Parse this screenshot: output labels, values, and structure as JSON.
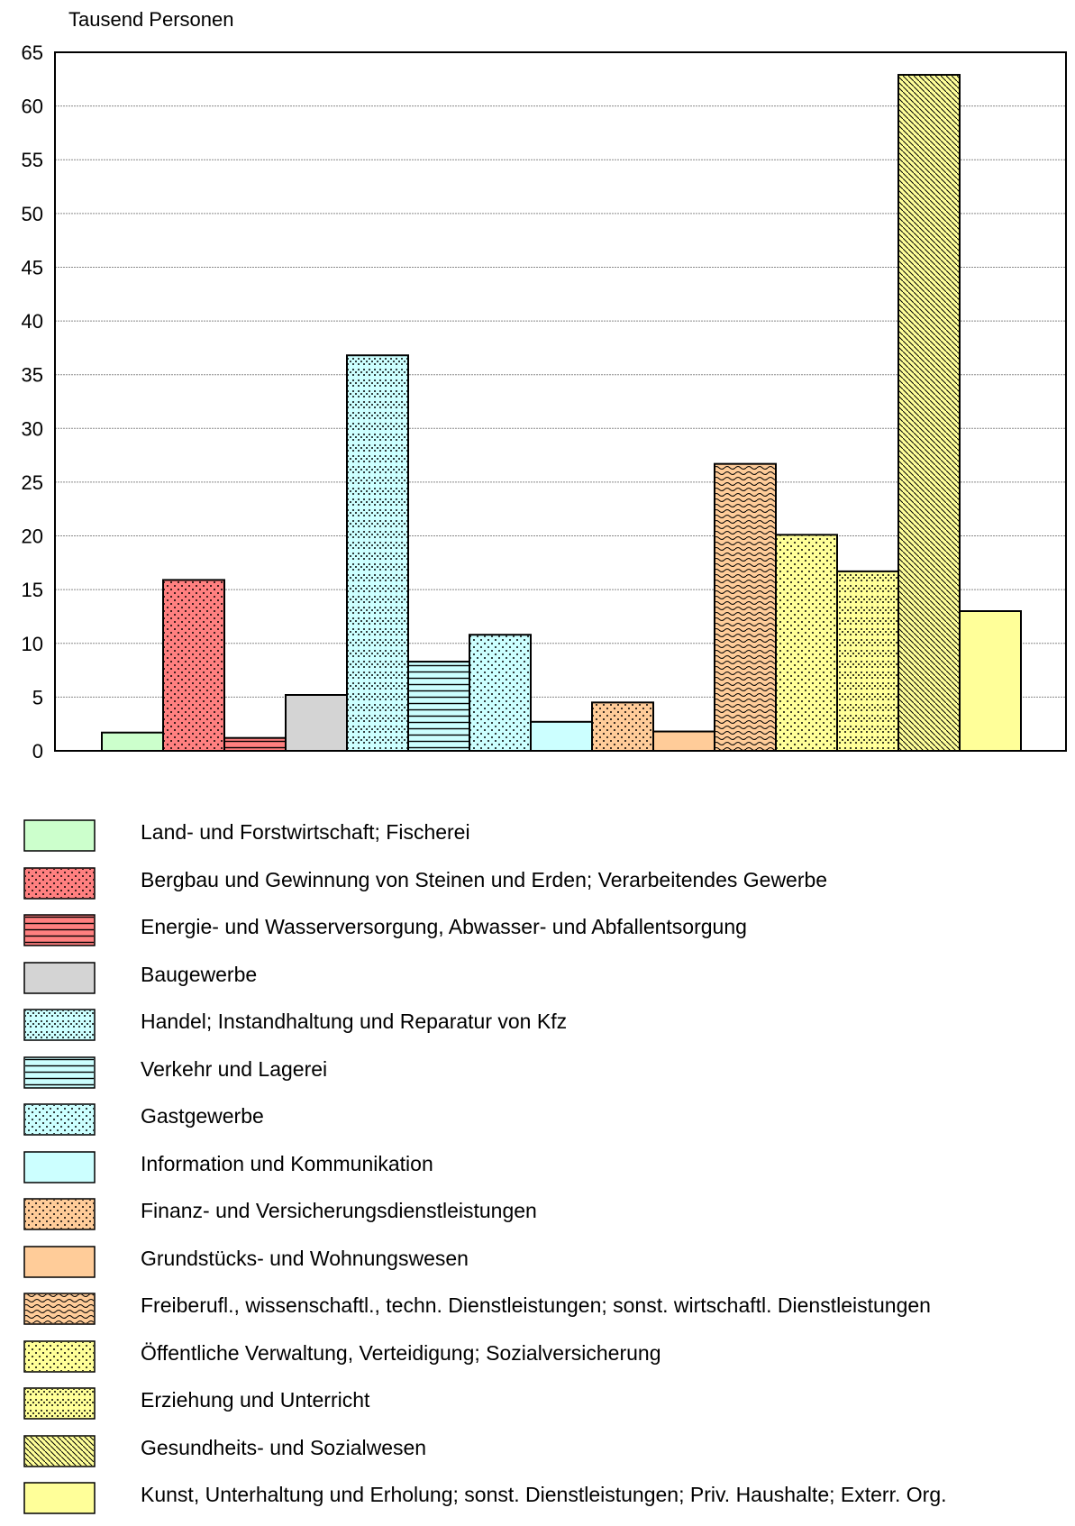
{
  "chart_data": {
    "type": "bar",
    "title": "",
    "ylabel": "Tausend Personen",
    "xlabel": "",
    "ylim": [
      0,
      65
    ],
    "yticks": [
      0,
      5,
      10,
      15,
      20,
      25,
      30,
      35,
      40,
      45,
      50,
      55,
      60,
      65
    ],
    "grid": true,
    "legend_position": "bottom",
    "categories": [
      "Land- und Forstwirtschaft; Fischerei",
      "Bergbau und Gewinnung von Steinen und Erden; Verarbeitendes Gewerbe",
      "Energie- und Wasserversorgung, Abwasser- und Abfallentsorgung",
      "Baugewerbe",
      "Handel; Instandhaltung und Reparatur von Kfz",
      "Verkehr und Lagerei",
      "Gastgewerbe",
      "Information und Kommunikation",
      "Finanz- und Versicherungsdienstleistungen",
      "Grundstücks- und Wohnungswesen",
      "Freiberufl., wissenschaftl., techn. Dienstleistungen; sonst. wirtschaftl. Dienstleistungen",
      "Öffentliche Verwaltung, Verteidigung; Sozialversicherung",
      "Erziehung und Unterricht",
      "Gesundheits- und Sozialwesen",
      "Kunst, Unterhaltung und Erholung; sonst. Dienstleistungen; Priv. Haushalte; Exterr. Org."
    ],
    "values": [
      1.7,
      15.9,
      1.2,
      5.2,
      36.8,
      8.3,
      10.8,
      2.7,
      4.5,
      1.8,
      26.7,
      20.1,
      16.7,
      62.9,
      13.0
    ],
    "colors": [
      "#ccffcc",
      "#ff8080",
      "#ff8080",
      "#d4d4d4",
      "#ccffff",
      "#ccffff",
      "#ccffff",
      "#ccffff",
      "#ffcc99",
      "#ffcc99",
      "#ffcc99",
      "#ffff99",
      "#ffff99",
      "#ffff99",
      "#ffff99"
    ],
    "patterns": [
      "solid",
      "dots",
      "hlines",
      "solid",
      "zigzag-dots",
      "hlines",
      "dots",
      "solid",
      "dots",
      "solid",
      "waves",
      "dots",
      "zigzag-dots",
      "diagonal",
      "solid"
    ]
  }
}
